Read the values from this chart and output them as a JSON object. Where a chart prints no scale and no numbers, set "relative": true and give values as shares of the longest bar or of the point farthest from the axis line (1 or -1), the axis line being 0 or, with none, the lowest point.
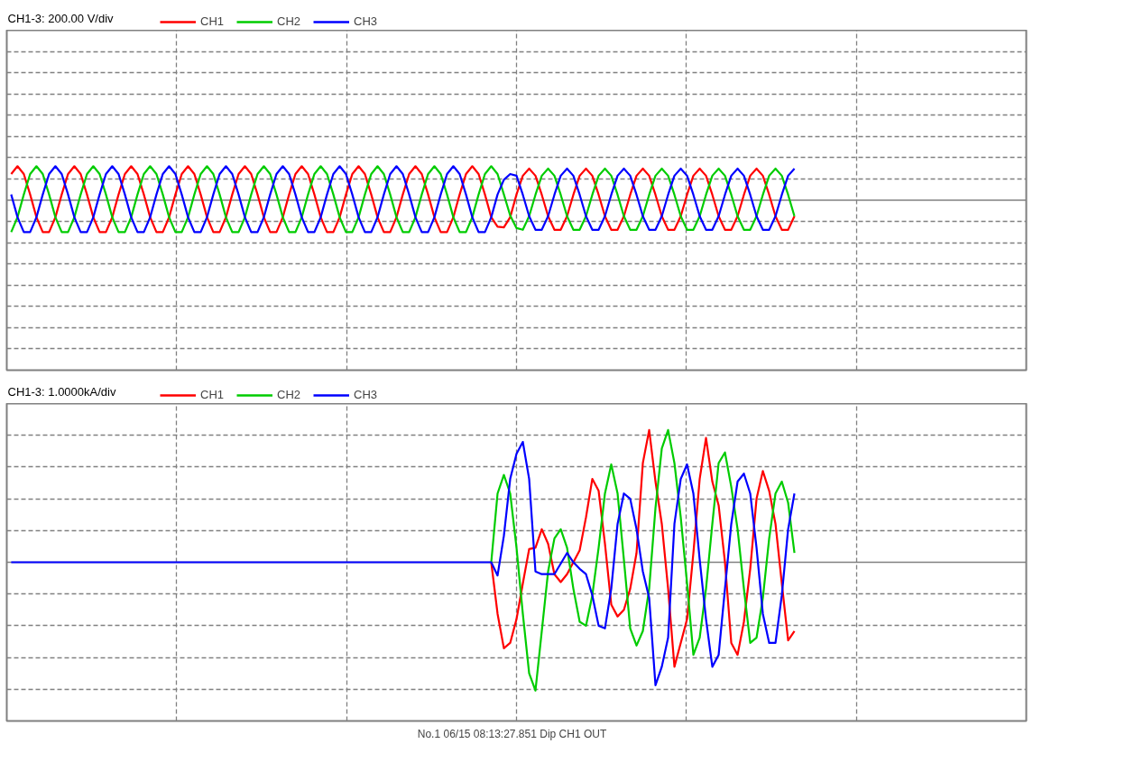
{
  "chart_data": [
    {
      "type": "line",
      "title": "CH1-3: 200.00 V/div",
      "relative": true,
      "grid": true,
      "legend": "top left",
      "categories": [
        null,
        null,
        null,
        null,
        null,
        null,
        null,
        null,
        null,
        null,
        null,
        null,
        null,
        null,
        null,
        null,
        null,
        null,
        null,
        null,
        null,
        null,
        null,
        null,
        null,
        null,
        null,
        null,
        null,
        null,
        null,
        null,
        null,
        null,
        null,
        null,
        null,
        null,
        null,
        null,
        null,
        null,
        null,
        null,
        null,
        null,
        null,
        null,
        null,
        null,
        null,
        null,
        null,
        null,
        null,
        null,
        null,
        null,
        null,
        null,
        null,
        null,
        null,
        null,
        null,
        null,
        null,
        null,
        null,
        null,
        null,
        null,
        null,
        null,
        null,
        null,
        null,
        null,
        null,
        null,
        null,
        null,
        null,
        null,
        null,
        null,
        null,
        null,
        null,
        null,
        null,
        null,
        null,
        null,
        null,
        null,
        null,
        null,
        null,
        null,
        null,
        null,
        null,
        null,
        null,
        null,
        null,
        null,
        null,
        null,
        null,
        null,
        null,
        null,
        null,
        null,
        null,
        null,
        null,
        null,
        null,
        null,
        null,
        null,
        null,
        null,
        null,
        null,
        null,
        null,
        null,
        null,
        null,
        null,
        null,
        null,
        null,
        null,
        null,
        null,
        null,
        null,
        null,
        null,
        null,
        null,
        null,
        null,
        null,
        null,
        null,
        null,
        null,
        null,
        null,
        null,
        null,
        null,
        null,
        null,
        null
      ],
      "series": [
        {
          "name": "CH1",
          "color": "#ff0000",
          "values": [
            0.77,
            1,
            0.77,
            0.17,
            -0.5,
            -0.94,
            -0.94,
            -0.5,
            0.17,
            0.77,
            1,
            0.77,
            0.17,
            -0.5,
            -0.94,
            -0.94,
            -0.5,
            0.17,
            0.77,
            1,
            0.77,
            0.17,
            -0.5,
            -0.94,
            -0.94,
            -0.5,
            0.17,
            0.77,
            1,
            0.77,
            0.17,
            -0.5,
            -0.94,
            -0.94,
            -0.5,
            0.17,
            0.77,
            1,
            0.77,
            0.17,
            -0.5,
            -0.94,
            -0.94,
            -0.5,
            0.17,
            0.77,
            1,
            0.77,
            0.17,
            -0.5,
            -0.94,
            -0.94,
            -0.5,
            0.17,
            0.77,
            1,
            0.77,
            0.17,
            -0.5,
            -0.94,
            -0.94,
            -0.5,
            0.17,
            0.77,
            1,
            0.77,
            0.17,
            -0.5,
            -0.94,
            -0.94,
            -0.5,
            0.17,
            0.77,
            1,
            0.77,
            0.17,
            -0.5,
            -0.78,
            -0.8,
            -0.5,
            0.17,
            0.72,
            0.93,
            0.72,
            0.16,
            -0.47,
            -0.87,
            -0.87,
            -0.47,
            0.16,
            0.72,
            0.93,
            0.72,
            0.16,
            -0.47,
            -0.87,
            -0.87,
            -0.47,
            0.16,
            0.72,
            0.93,
            0.72,
            0.16,
            -0.47,
            -0.87,
            -0.87,
            -0.47,
            0.16,
            0.72,
            0.93,
            0.72,
            0.16,
            -0.47,
            -0.87,
            -0.87,
            -0.47,
            0.16,
            0.72,
            0.93,
            0.72,
            0.16,
            -0.47,
            -0.87,
            -0.87,
            -0.47,
            null,
            null,
            null,
            null,
            null,
            null,
            null,
            null,
            null,
            null,
            null,
            null,
            null,
            null,
            null,
            null,
            null,
            null,
            null,
            null,
            null,
            null,
            null,
            null,
            null,
            null,
            null,
            null,
            null,
            null,
            null,
            null,
            null,
            null,
            null,
            null
          ]
        },
        {
          "name": "CH2",
          "color": "#00cc00",
          "values": [
            -0.94,
            -0.5,
            0.17,
            0.77,
            1,
            0.77,
            0.17,
            -0.5,
            -0.94,
            -0.94,
            -0.5,
            0.17,
            0.77,
            1,
            0.77,
            0.17,
            -0.5,
            -0.94,
            -0.94,
            -0.5,
            0.17,
            0.77,
            1,
            0.77,
            0.17,
            -0.5,
            -0.94,
            -0.94,
            -0.5,
            0.17,
            0.77,
            1,
            0.77,
            0.17,
            -0.5,
            -0.94,
            -0.94,
            -0.5,
            0.17,
            0.77,
            1,
            0.77,
            0.17,
            -0.5,
            -0.94,
            -0.94,
            -0.5,
            0.17,
            0.77,
            1,
            0.77,
            0.17,
            -0.5,
            -0.94,
            -0.94,
            -0.5,
            0.17,
            0.77,
            1,
            0.77,
            0.17,
            -0.5,
            -0.94,
            -0.94,
            -0.5,
            0.17,
            0.77,
            1,
            0.77,
            0.17,
            -0.5,
            -0.94,
            -0.94,
            -0.5,
            0.17,
            0.77,
            1,
            0.77,
            0.17,
            -0.45,
            -0.82,
            -0.87,
            -0.47,
            0.16,
            0.72,
            0.93,
            0.72,
            0.16,
            -0.47,
            -0.87,
            -0.87,
            -0.47,
            0.16,
            0.72,
            0.93,
            0.72,
            0.16,
            -0.47,
            -0.87,
            -0.87,
            -0.47,
            0.16,
            0.72,
            0.93,
            0.72,
            0.16,
            -0.47,
            -0.87,
            -0.87,
            -0.47,
            0.16,
            0.72,
            0.93,
            0.72,
            0.16,
            -0.47,
            -0.87,
            -0.87,
            -0.47,
            0.16,
            0.72,
            0.93,
            0.72,
            0.16,
            -0.47,
            null,
            null,
            null,
            null,
            null,
            null,
            null,
            null,
            null,
            null,
            null,
            null,
            null,
            null,
            null,
            null,
            null,
            null,
            null,
            null,
            null,
            null,
            null,
            null,
            null,
            null,
            null,
            null,
            null,
            null,
            null,
            null,
            null,
            null,
            null,
            null
          ]
        },
        {
          "name": "CH3",
          "color": "#0000ff",
          "values": [
            0.17,
            -0.5,
            -0.94,
            -0.94,
            -0.5,
            0.17,
            0.77,
            1,
            0.77,
            0.17,
            -0.5,
            -0.94,
            -0.94,
            -0.5,
            0.17,
            0.77,
            1,
            0.77,
            0.17,
            -0.5,
            -0.94,
            -0.94,
            -0.5,
            0.17,
            0.77,
            1,
            0.77,
            0.17,
            -0.5,
            -0.94,
            -0.94,
            -0.5,
            0.17,
            0.77,
            1,
            0.77,
            0.17,
            -0.5,
            -0.94,
            -0.94,
            -0.5,
            0.17,
            0.77,
            1,
            0.77,
            0.17,
            -0.5,
            -0.94,
            -0.94,
            -0.5,
            0.17,
            0.77,
            1,
            0.77,
            0.17,
            -0.5,
            -0.94,
            -0.94,
            -0.5,
            0.17,
            0.77,
            1,
            0.77,
            0.17,
            -0.5,
            -0.94,
            -0.94,
            -0.5,
            0.17,
            0.77,
            1,
            0.77,
            0.17,
            -0.5,
            -0.94,
            -0.94,
            -0.5,
            0.17,
            0.6,
            0.77,
            0.72,
            0.16,
            -0.47,
            -0.87,
            -0.87,
            -0.47,
            0.16,
            0.72,
            0.93,
            0.72,
            0.16,
            -0.47,
            -0.87,
            -0.87,
            -0.47,
            0.16,
            0.72,
            0.93,
            0.72,
            0.16,
            -0.47,
            -0.87,
            -0.87,
            -0.47,
            0.16,
            0.72,
            0.93,
            0.72,
            0.16,
            -0.47,
            -0.87,
            -0.87,
            -0.47,
            0.16,
            0.72,
            0.93,
            0.72,
            0.16,
            -0.47,
            -0.87,
            -0.87,
            -0.47,
            0.16,
            0.72,
            0.93,
            null,
            null,
            null,
            null,
            null,
            null,
            null,
            null,
            null,
            null,
            null,
            null,
            null,
            null,
            null,
            null,
            null,
            null,
            null,
            null,
            null,
            null,
            null,
            null,
            null,
            null,
            null,
            null,
            null,
            null,
            null,
            null,
            null,
            null,
            null,
            null
          ]
        }
      ]
    },
    {
      "type": "line",
      "title": "CH1-3: 1.0000kA/div",
      "relative": true,
      "grid": true,
      "legend": "top left",
      "annotations": [
        "No.1 06/15 08:13:27.851  Dip  CH1  OUT"
      ],
      "categories": [
        null,
        null,
        null,
        null,
        null,
        null,
        null,
        null,
        null,
        null,
        null,
        null,
        null,
        null,
        null,
        null,
        null,
        null,
        null,
        null,
        null,
        null,
        null,
        null,
        null,
        null,
        null,
        null,
        null,
        null,
        null,
        null,
        null,
        null,
        null,
        null,
        null,
        null,
        null,
        null,
        null,
        null,
        null,
        null,
        null,
        null,
        null,
        null,
        null,
        null,
        null,
        null,
        null,
        null,
        null,
        null,
        null,
        null,
        null,
        null,
        null,
        null,
        null,
        null,
        null,
        null,
        null,
        null,
        null,
        null,
        null,
        null,
        null,
        null,
        null,
        null,
        null,
        null,
        null,
        null,
        null,
        null,
        null,
        null,
        null,
        null,
        null,
        null,
        null,
        null,
        null,
        null,
        null,
        null,
        null,
        null,
        null,
        null,
        null,
        null,
        null,
        null,
        null,
        null,
        null,
        null,
        null,
        null,
        null,
        null,
        null,
        null,
        null,
        null,
        null,
        null,
        null,
        null,
        null,
        null,
        null,
        null,
        null,
        null,
        null,
        null,
        null,
        null,
        null,
        null,
        null,
        null,
        null,
        null,
        null,
        null,
        null,
        null,
        null,
        null,
        null,
        null,
        null,
        null,
        null,
        null,
        null,
        null,
        null,
        null,
        null,
        null,
        null,
        null,
        null,
        null,
        null,
        null,
        null,
        null,
        null
      ],
      "series": [
        {
          "name": "CH1",
          "color": "#ff0000",
          "values": [
            null,
            null,
            null,
            null,
            null,
            null,
            null,
            null,
            null,
            null,
            null,
            null,
            null,
            null,
            null,
            null,
            null,
            null,
            null,
            null,
            null,
            null,
            null,
            null,
            null,
            null,
            null,
            null,
            null,
            null,
            null,
            null,
            null,
            null,
            null,
            null,
            null,
            null,
            null,
            null,
            null,
            null,
            null,
            null,
            null,
            null,
            null,
            null,
            null,
            null,
            null,
            null,
            null,
            null,
            null,
            null,
            null,
            null,
            null,
            null,
            null,
            null,
            null,
            null,
            null,
            null,
            null,
            null,
            null,
            null,
            null,
            null,
            null,
            null,
            null,
            null,
            0,
            -0.39,
            -0.65,
            -0.61,
            -0.43,
            -0.16,
            0.1,
            0.11,
            0.25,
            0.14,
            -0.09,
            -0.15,
            -0.09,
            0,
            0.09,
            0.34,
            0.63,
            0.54,
            0.14,
            -0.32,
            -0.41,
            -0.36,
            -0.2,
            0.07,
            0.75,
            1,
            0.61,
            0.29,
            -0.2,
            -0.79,
            -0.61,
            -0.43,
            0.07,
            0.63,
            0.94,
            0.61,
            0.43,
            0,
            -0.61,
            -0.7,
            -0.45,
            -0.05,
            0.48,
            0.69,
            0.54,
            0.29,
            -0.16,
            -0.59,
            -0.52,
            null,
            null,
            null,
            null,
            null,
            null,
            null,
            null,
            null,
            null,
            null,
            null,
            null,
            null,
            null,
            null,
            null,
            null,
            null,
            null,
            null,
            null,
            null,
            null,
            null,
            null,
            null,
            null,
            null,
            null,
            null,
            null,
            null,
            null,
            null,
            null
          ]
        },
        {
          "name": "CH2",
          "color": "#00cc00",
          "values": [
            null,
            null,
            null,
            null,
            null,
            null,
            null,
            null,
            null,
            null,
            null,
            null,
            null,
            null,
            null,
            null,
            null,
            null,
            null,
            null,
            null,
            null,
            null,
            null,
            null,
            null,
            null,
            null,
            null,
            null,
            null,
            null,
            null,
            null,
            null,
            null,
            null,
            null,
            null,
            null,
            null,
            null,
            null,
            null,
            null,
            null,
            null,
            null,
            null,
            null,
            null,
            null,
            null,
            null,
            null,
            null,
            null,
            null,
            null,
            null,
            null,
            null,
            null,
            null,
            null,
            null,
            null,
            null,
            null,
            null,
            null,
            null,
            null,
            null,
            null,
            null,
            0,
            0.52,
            0.66,
            0.52,
            0.11,
            -0.39,
            -0.84,
            -0.97,
            -0.52,
            -0.07,
            0.18,
            0.25,
            0.11,
            -0.2,
            -0.45,
            -0.48,
            -0.25,
            0.11,
            0.52,
            0.74,
            0.52,
            0.02,
            -0.5,
            -0.63,
            -0.52,
            -0.2,
            0.41,
            0.86,
            1,
            0.75,
            0.34,
            -0.16,
            -0.7,
            -0.57,
            -0.2,
            0.29,
            0.75,
            0.83,
            0.57,
            0.25,
            -0.2,
            -0.61,
            -0.57,
            -0.27,
            0.18,
            0.52,
            0.61,
            0.45,
            0.07,
            null,
            null,
            null,
            null,
            null,
            null,
            null,
            null,
            null,
            null,
            null,
            null,
            null,
            null,
            null,
            null,
            null,
            null,
            null,
            null,
            null,
            null,
            null,
            null,
            null,
            null,
            null,
            null,
            null,
            null,
            null,
            null,
            null,
            null,
            null,
            null
          ]
        },
        {
          "name": "CH3",
          "color": "#0000ff",
          "values": [
            0,
            0,
            0,
            0,
            0,
            0,
            0,
            0,
            0,
            0,
            0,
            0,
            0,
            0,
            0,
            0,
            0,
            0,
            0,
            0,
            0,
            0,
            0,
            0,
            0,
            0,
            0,
            0,
            0,
            0,
            0,
            0,
            0,
            0,
            0,
            0,
            0,
            0,
            0,
            0,
            0,
            0,
            0,
            0,
            0,
            0,
            0,
            0,
            0,
            0,
            0,
            0,
            0,
            0,
            0,
            0,
            0,
            0,
            0,
            0,
            0,
            0,
            0,
            0,
            0,
            0,
            0,
            0,
            0,
            0,
            0,
            0,
            0,
            0,
            0,
            0,
            0,
            -0.1,
            0.2,
            0.63,
            0.82,
            0.91,
            0.63,
            -0.07,
            -0.09,
            -0.09,
            -0.09,
            -0.01,
            0.07,
            0,
            -0.05,
            -0.09,
            -0.25,
            -0.48,
            -0.5,
            -0.2,
            0.29,
            0.52,
            0.48,
            0.25,
            -0.07,
            -0.27,
            -0.93,
            -0.79,
            -0.57,
            0.29,
            0.63,
            0.74,
            0.52,
            0.02,
            -0.43,
            -0.79,
            -0.7,
            -0.2,
            0.29,
            0.61,
            0.67,
            0.52,
            0.11,
            -0.39,
            -0.61,
            -0.61,
            -0.25,
            0.25,
            0.52,
            null,
            null,
            null,
            null,
            null,
            null,
            null,
            null,
            null,
            null,
            null,
            null,
            null,
            null,
            null,
            null,
            null,
            null,
            null,
            null,
            null,
            null,
            null,
            null,
            null,
            null,
            null,
            null,
            null,
            null,
            null,
            null,
            null,
            null,
            null,
            null
          ]
        }
      ]
    }
  ]
}
